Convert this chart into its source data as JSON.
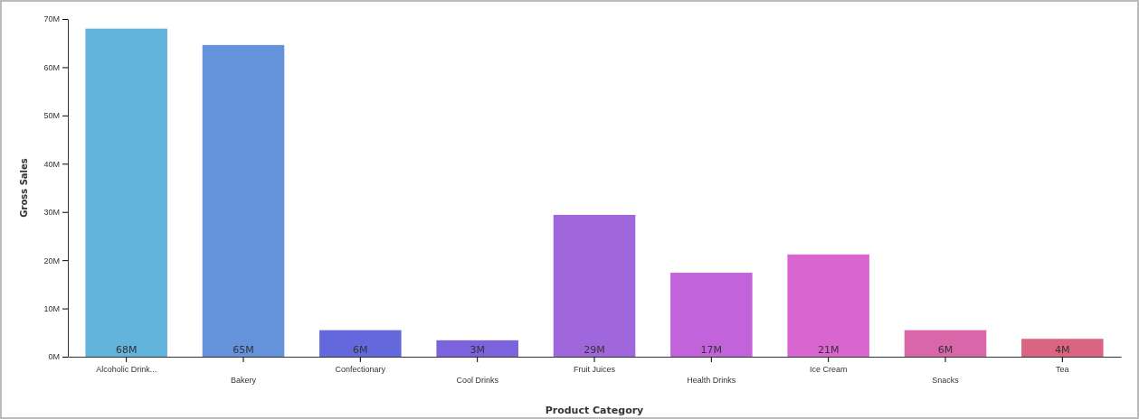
{
  "chart_data": {
    "type": "bar",
    "xlabel": "Product Category",
    "ylabel": "Gross Sales",
    "categories": [
      "Alcoholic Drink...",
      "Bakery",
      "Confectionary",
      "Cool Drinks",
      "Fruit Juices",
      "Health Drinks",
      "Ice Cream",
      "Snacks",
      "Tea"
    ],
    "values": [
      68,
      64.6,
      5.5,
      3.4,
      29.4,
      17.4,
      21.2,
      5.5,
      3.7
    ],
    "colors": [
      "#63b4dc",
      "#6493dc",
      "#6369dc",
      "#7a63dc",
      "#a066dc",
      "#c363dc",
      "#d966d0",
      "#d966a8",
      "#dc6483"
    ],
    "value_labels": [
      "68M",
      "65M",
      "6M",
      "3M",
      "29M",
      "17M",
      "21M",
      "6M",
      "4M"
    ],
    "ylim": [
      0,
      70
    ],
    "yticks": [
      {
        "value": 0,
        "label": "0M"
      },
      {
        "value": 10,
        "label": "10M"
      },
      {
        "value": 20,
        "label": "20M"
      },
      {
        "value": 30,
        "label": "30M"
      },
      {
        "value": 40,
        "label": "40M"
      },
      {
        "value": 50,
        "label": "50M"
      },
      {
        "value": 60,
        "label": "60M"
      },
      {
        "value": 70,
        "label": "70M"
      }
    ],
    "grid": false
  }
}
